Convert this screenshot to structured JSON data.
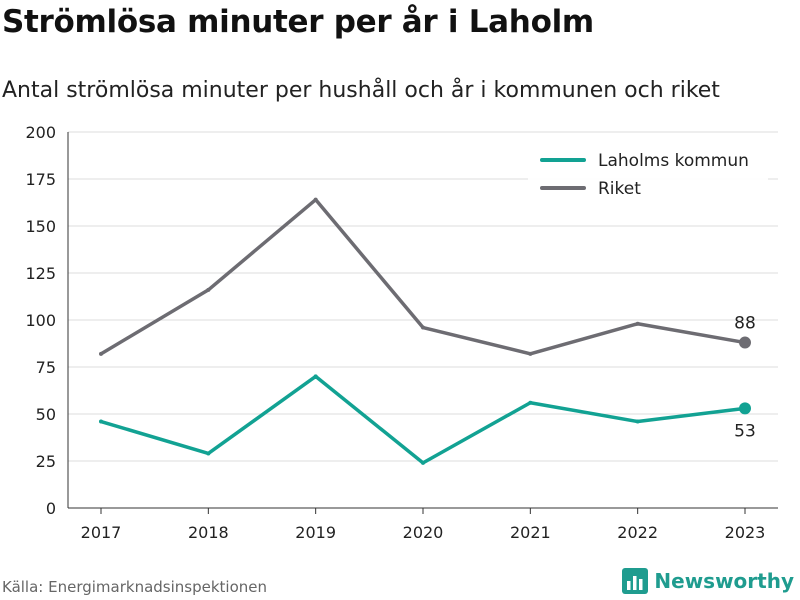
{
  "header": {
    "title": "Strömlösa minuter per år i Laholm",
    "subtitle": "Antal strömlösa minuter per hushåll och år i kommunen och riket"
  },
  "footer": {
    "source": "Källa: Energimarknadsinspektionen",
    "brand": "Newsworthy",
    "brand_icon": "bar-chart-logo-icon"
  },
  "chart_data": {
    "type": "line",
    "categories": [
      "2017",
      "2018",
      "2019",
      "2020",
      "2021",
      "2022",
      "2023"
    ],
    "series": [
      {
        "name": "Laholms kommun",
        "color": "#12a293",
        "values": [
          46,
          29,
          70,
          24,
          56,
          46,
          53
        ],
        "end_label": "53"
      },
      {
        "name": "Riket",
        "color": "#6d6c72",
        "values": [
          82,
          116,
          164,
          96,
          82,
          98,
          88
        ],
        "end_label": "88"
      }
    ],
    "yticks": [
      "0",
      "25",
      "50",
      "75",
      "100",
      "125",
      "150",
      "175",
      "200"
    ],
    "ylim": [
      0,
      200
    ],
    "grid": true,
    "legend_position": "top-right"
  }
}
